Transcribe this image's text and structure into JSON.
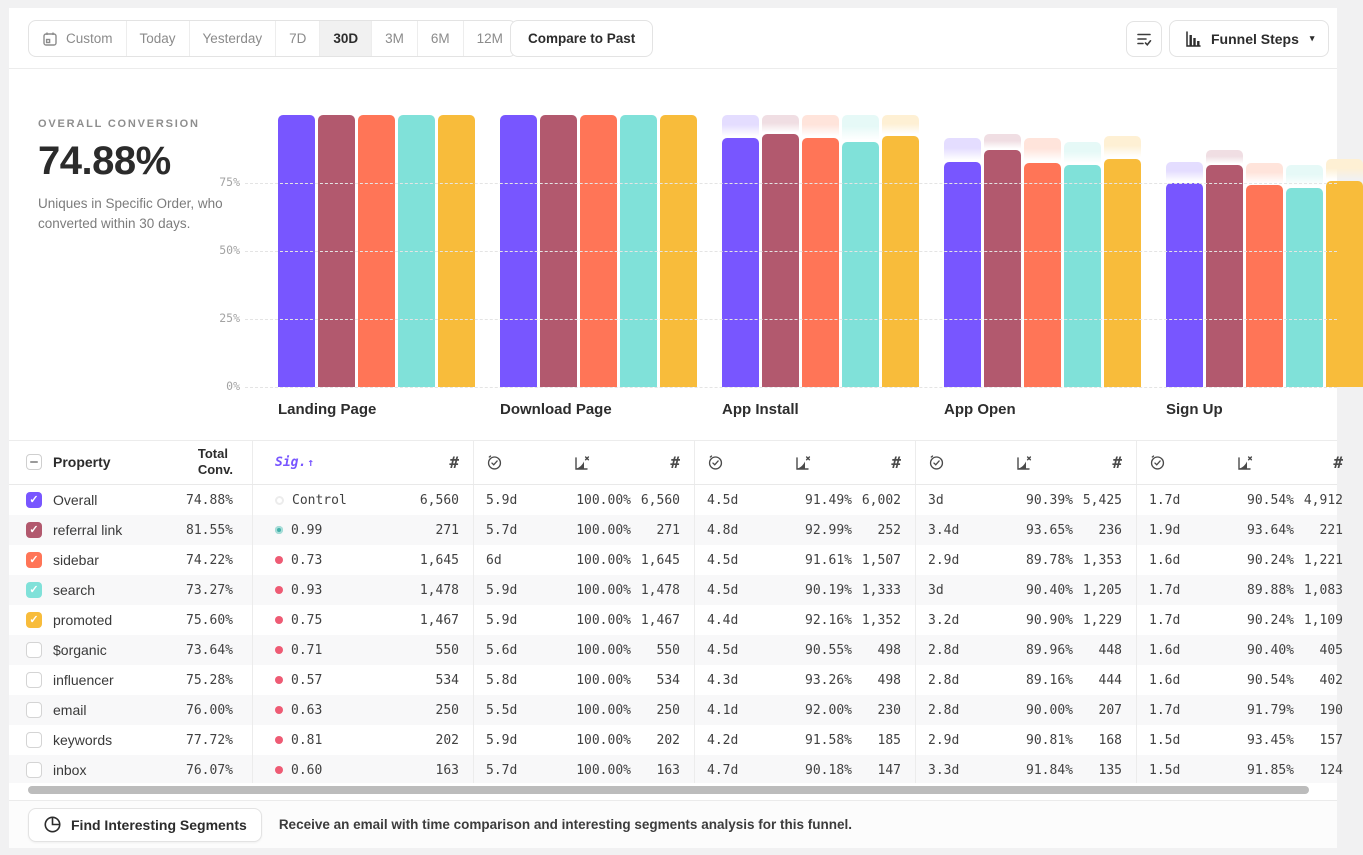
{
  "toolbar": {
    "date_ranges": [
      "Custom",
      "Today",
      "Yesterday",
      "7D",
      "30D",
      "3M",
      "6M",
      "12M"
    ],
    "selected_range": "30D",
    "compare_label": "Compare to Past",
    "funnel_steps_label": "Funnel Steps"
  },
  "icons": {
    "hash": "#",
    "caret": "▾",
    "check": "✓",
    "sort_up": "↑"
  },
  "colors": {
    "accent_purple": "#7856ff",
    "sig_positive": "#45b1aa",
    "sig_negative": "#ee5b74",
    "bar_palette": [
      "#7856FF",
      "#B2596E",
      "#FF7557",
      "#80E1D9",
      "#F8BC3B"
    ]
  },
  "overview": {
    "label": "OVERALL CONVERSION",
    "value": "74.88%",
    "description": "Uniques in Specific Order, who converted within 30 days."
  },
  "chart_data": {
    "type": "bar",
    "title": "",
    "xlabel": "",
    "ylabel": "",
    "ylim": [
      0,
      100
    ],
    "grid": true,
    "legend_position": "none",
    "yticks": [
      {
        "label": "75%",
        "value": 75
      },
      {
        "label": "50%",
        "value": 50
      },
      {
        "label": "25%",
        "value": 25
      },
      {
        "label": "0%",
        "value": 0
      }
    ],
    "categories": [
      "Landing Page",
      "Download Page",
      "App Install",
      "App Open",
      "Sign Up"
    ],
    "series": [
      {
        "name": "Overall",
        "color": "#7856FF",
        "tint": "#E4DDFF",
        "values": [
          100,
          100,
          91.49,
          82.7,
          74.88
        ]
      },
      {
        "name": "referral link",
        "color": "#B2596E",
        "tint": "#F0DEE3",
        "values": [
          100,
          100,
          92.99,
          87.08,
          81.55
        ]
      },
      {
        "name": "sidebar",
        "color": "#FF7557",
        "tint": "#FFE4DB",
        "values": [
          100,
          100,
          91.61,
          82.25,
          74.22
        ]
      },
      {
        "name": "search",
        "color": "#80E1D9",
        "tint": "#E6F9F7",
        "values": [
          100,
          100,
          90.19,
          81.53,
          73.27
        ]
      },
      {
        "name": "promoted",
        "color": "#F8BC3B",
        "tint": "#FEF0D4",
        "values": [
          100,
          100,
          92.16,
          83.77,
          75.6
        ]
      }
    ]
  },
  "table": {
    "header": {
      "property": "Property",
      "total_line1": "Total",
      "total_line2": "Conv.",
      "sig": "Sig."
    },
    "rows": [
      {
        "name": "Overall",
        "checked": true,
        "color": "#7856FF",
        "total": "74.88%",
        "sig": "Control",
        "tone": "control",
        "landing_count": "6,560",
        "steps": [
          {
            "t": "5.9d",
            "c": "100.00%",
            "n": "6,560"
          },
          {
            "t": "4.5d",
            "c": "91.49%",
            "n": "6,002"
          },
          {
            "t": "3d",
            "c": "90.39%",
            "n": "5,425"
          },
          {
            "t": "1.7d",
            "c": "90.54%",
            "n": "4,912"
          }
        ]
      },
      {
        "name": "referral link",
        "checked": true,
        "color": "#B2596E",
        "total": "81.55%",
        "sig": "0.99",
        "tone": "high",
        "landing_count": "271",
        "steps": [
          {
            "t": "5.7d",
            "c": "100.00%",
            "n": "271"
          },
          {
            "t": "4.8d",
            "c": "92.99%",
            "n": "252"
          },
          {
            "t": "3.4d",
            "c": "93.65%",
            "n": "236"
          },
          {
            "t": "1.9d",
            "c": "93.64%",
            "n": "221"
          }
        ]
      },
      {
        "name": "sidebar",
        "checked": true,
        "color": "#FF7557",
        "total": "74.22%",
        "sig": "0.73",
        "tone": "low",
        "landing_count": "1,645",
        "steps": [
          {
            "t": "6d",
            "c": "100.00%",
            "n": "1,645"
          },
          {
            "t": "4.5d",
            "c": "91.61%",
            "n": "1,507"
          },
          {
            "t": "2.9d",
            "c": "89.78%",
            "n": "1,353"
          },
          {
            "t": "1.6d",
            "c": "90.24%",
            "n": "1,221"
          }
        ]
      },
      {
        "name": "search",
        "checked": true,
        "color": "#80E1D9",
        "total": "73.27%",
        "sig": "0.93",
        "tone": "low",
        "landing_count": "1,478",
        "steps": [
          {
            "t": "5.9d",
            "c": "100.00%",
            "n": "1,478"
          },
          {
            "t": "4.5d",
            "c": "90.19%",
            "n": "1,333"
          },
          {
            "t": "3d",
            "c": "90.40%",
            "n": "1,205"
          },
          {
            "t": "1.7d",
            "c": "89.88%",
            "n": "1,083"
          }
        ]
      },
      {
        "name": "promoted",
        "checked": true,
        "color": "#F8BC3B",
        "total": "75.60%",
        "sig": "0.75",
        "tone": "low",
        "landing_count": "1,467",
        "steps": [
          {
            "t": "5.9d",
            "c": "100.00%",
            "n": "1,467"
          },
          {
            "t": "4.4d",
            "c": "92.16%",
            "n": "1,352"
          },
          {
            "t": "3.2d",
            "c": "90.90%",
            "n": "1,229"
          },
          {
            "t": "1.7d",
            "c": "90.24%",
            "n": "1,109"
          }
        ]
      },
      {
        "name": "$organic",
        "checked": false,
        "color": null,
        "total": "73.64%",
        "sig": "0.71",
        "tone": "low",
        "landing_count": "550",
        "steps": [
          {
            "t": "5.6d",
            "c": "100.00%",
            "n": "550"
          },
          {
            "t": "4.5d",
            "c": "90.55%",
            "n": "498"
          },
          {
            "t": "2.8d",
            "c": "89.96%",
            "n": "448"
          },
          {
            "t": "1.6d",
            "c": "90.40%",
            "n": "405"
          }
        ]
      },
      {
        "name": "influencer",
        "checked": false,
        "color": null,
        "total": "75.28%",
        "sig": "0.57",
        "tone": "low",
        "landing_count": "534",
        "steps": [
          {
            "t": "5.8d",
            "c": "100.00%",
            "n": "534"
          },
          {
            "t": "4.3d",
            "c": "93.26%",
            "n": "498"
          },
          {
            "t": "2.8d",
            "c": "89.16%",
            "n": "444"
          },
          {
            "t": "1.6d",
            "c": "90.54%",
            "n": "402"
          }
        ]
      },
      {
        "name": "email",
        "checked": false,
        "color": null,
        "total": "76.00%",
        "sig": "0.63",
        "tone": "low",
        "landing_count": "250",
        "steps": [
          {
            "t": "5.5d",
            "c": "100.00%",
            "n": "250"
          },
          {
            "t": "4.1d",
            "c": "92.00%",
            "n": "230"
          },
          {
            "t": "2.8d",
            "c": "90.00%",
            "n": "207"
          },
          {
            "t": "1.7d",
            "c": "91.79%",
            "n": "190"
          }
        ]
      },
      {
        "name": "keywords",
        "checked": false,
        "color": null,
        "total": "77.72%",
        "sig": "0.81",
        "tone": "low",
        "landing_count": "202",
        "steps": [
          {
            "t": "5.9d",
            "c": "100.00%",
            "n": "202"
          },
          {
            "t": "4.2d",
            "c": "91.58%",
            "n": "185"
          },
          {
            "t": "2.9d",
            "c": "90.81%",
            "n": "168"
          },
          {
            "t": "1.5d",
            "c": "93.45%",
            "n": "157"
          }
        ]
      },
      {
        "name": "inbox",
        "checked": false,
        "color": null,
        "total": "76.07%",
        "sig": "0.60",
        "tone": "low",
        "landing_count": "163",
        "steps": [
          {
            "t": "5.7d",
            "c": "100.00%",
            "n": "163"
          },
          {
            "t": "4.7d",
            "c": "90.18%",
            "n": "147"
          },
          {
            "t": "3.3d",
            "c": "91.84%",
            "n": "135"
          },
          {
            "t": "1.5d",
            "c": "91.85%",
            "n": "124"
          }
        ]
      }
    ]
  },
  "footer": {
    "button_label": "Find Interesting Segments",
    "message": "Receive an email with time comparison and interesting segments analysis for this funnel."
  }
}
